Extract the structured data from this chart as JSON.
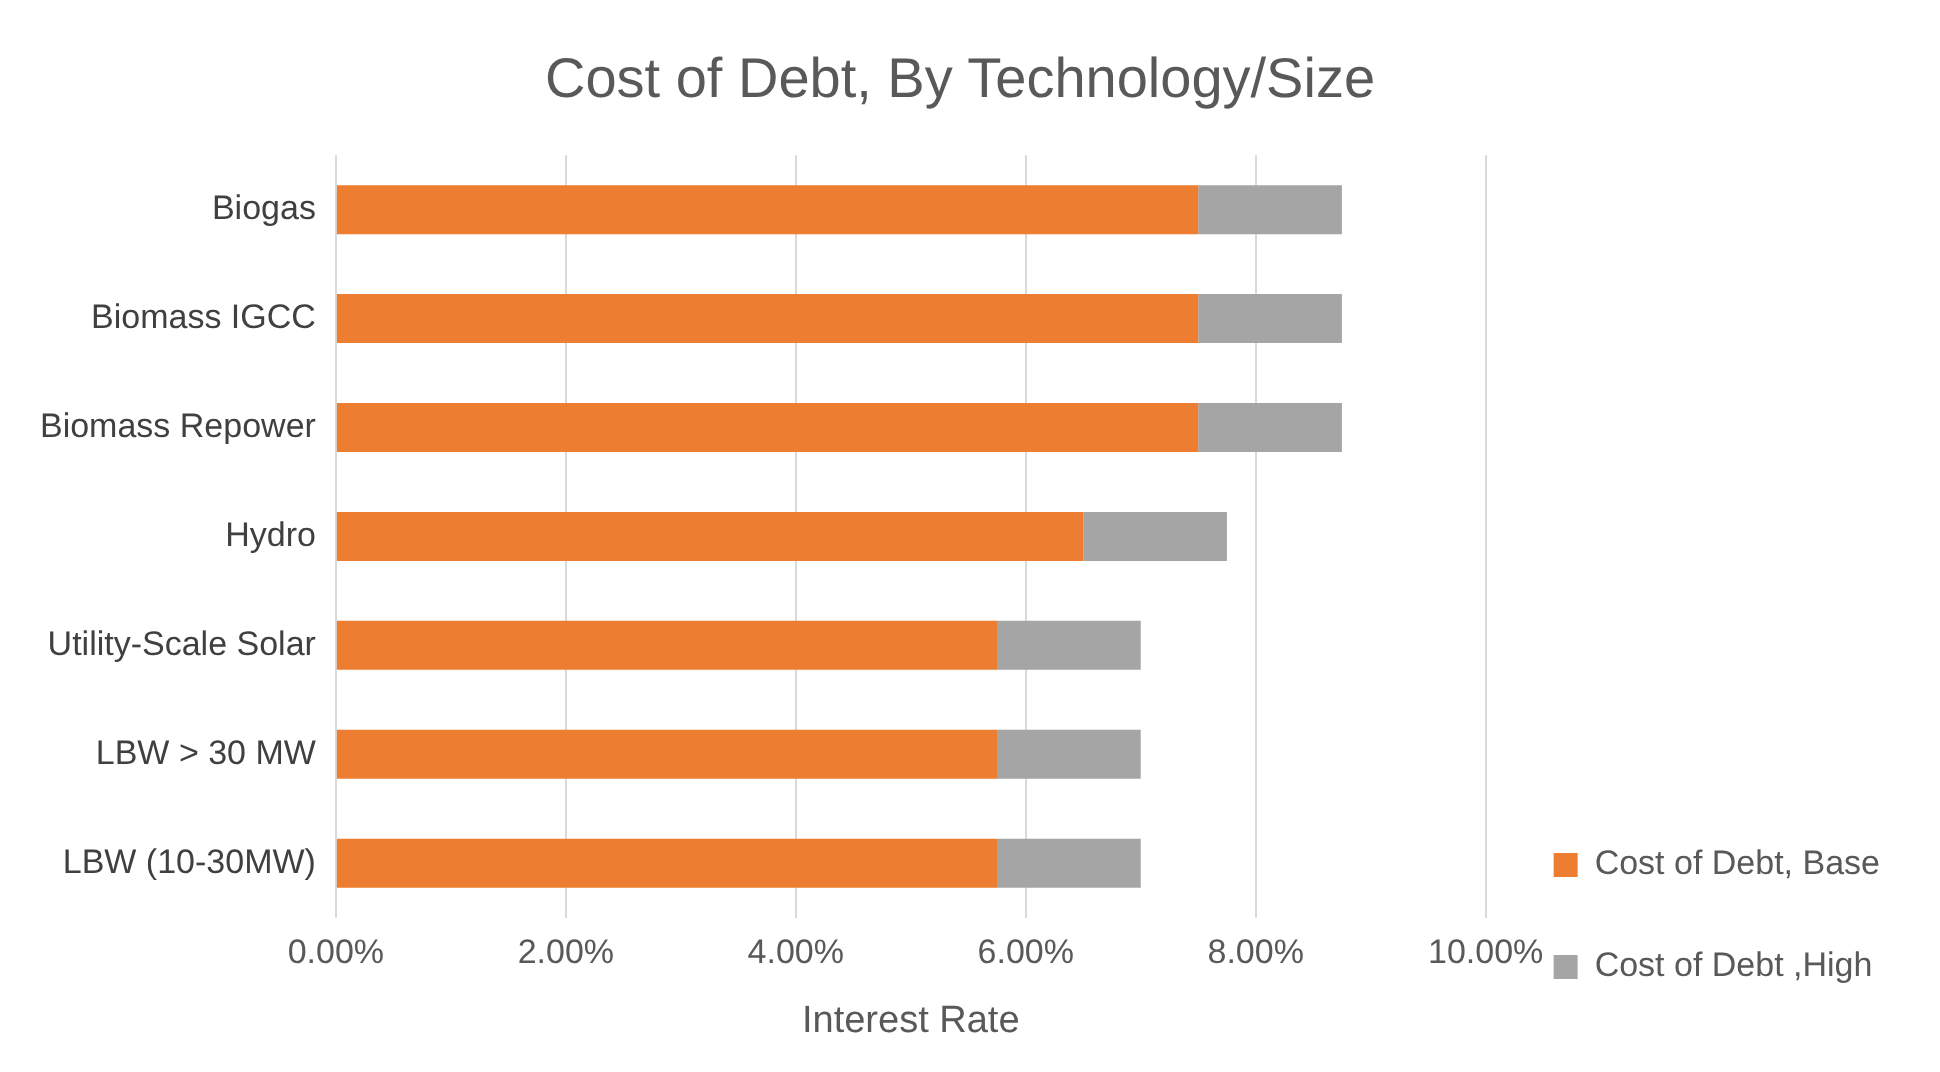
{
  "chart_data": {
    "type": "bar",
    "orientation": "horizontal",
    "stacked": true,
    "title": "Cost of Debt, By Technology/Size",
    "xlabel": "Interest Rate",
    "categories": [
      "Biogas",
      "Biomass IGCC",
      "Biomass Repower",
      "Hydro",
      "Utility-Scale Solar",
      "LBW > 30 MW",
      "LBW (10-30MW)"
    ],
    "series": [
      {
        "name": "Cost of Debt, Base",
        "color": "#ed7d31",
        "values": [
          7.5,
          7.5,
          7.5,
          6.5,
          5.75,
          5.75,
          5.75
        ]
      },
      {
        "name": "Cost of Debt ,High",
        "color": "#a5a5a5",
        "values": [
          1.25,
          1.25,
          1.25,
          1.25,
          1.25,
          1.25,
          1.25
        ]
      }
    ],
    "xlim": [
      0,
      10
    ],
    "xticks": [
      {
        "value": 0,
        "label": "0.00%"
      },
      {
        "value": 2,
        "label": "2.00%"
      },
      {
        "value": 4,
        "label": "4.00%"
      },
      {
        "value": 6,
        "label": "6.00%"
      },
      {
        "value": 8,
        "label": "8.00%"
      },
      {
        "value": 10,
        "label": "10.00%"
      }
    ],
    "grid": "x",
    "legend": "right"
  }
}
